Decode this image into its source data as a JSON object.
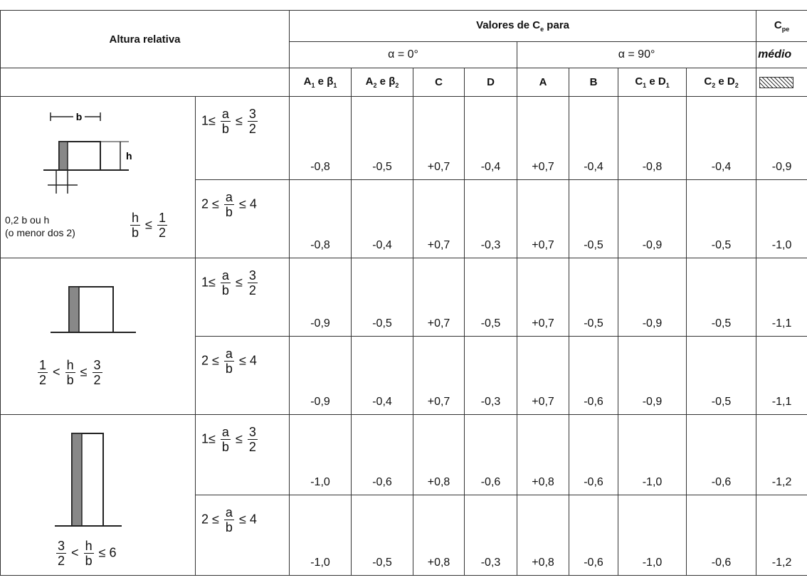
{
  "header": {
    "altura_relativa": "Altura relativa",
    "valores_title": "Valores de C",
    "valores_sub": "e",
    "valores_tail": " para",
    "alpha0": "α = 0°",
    "alpha90": "α = 90°",
    "cpe_main": "C",
    "cpe_sub": "pe",
    "medio": "médio",
    "cols": {
      "c1a": "A",
      "c1a_sub": "1",
      "c1b": " e β",
      "c1b_sub": "1",
      "c2a": "A",
      "c2a_sub": "2",
      "c2b": " e β",
      "c2b_sub": "2",
      "c3": "C",
      "c4": "D",
      "c5": "A",
      "c6": "B",
      "c7a": "C",
      "c7a_sub": "1",
      "c7b": " e D",
      "c7b_sub": "1",
      "c8a": "C",
      "c8a_sub": "2",
      "c8b": " e D",
      "c8b_sub": "2"
    }
  },
  "conditions": {
    "ratio_small_left": "1≤",
    "ratio_small_mid": "≤",
    "ratio_big_left": "2 ≤",
    "ratio_big_right": "≤ 4",
    "a": "a",
    "b": "b",
    "three": "3",
    "two": "2"
  },
  "groups": [
    {
      "fig_b_label": "b",
      "fig_h_label": "h",
      "note_line1": "0,2 b ou h",
      "note_line2": "(o menor dos 2)",
      "rel_num": "h",
      "rel_den": "b",
      "rel_op": "≤",
      "rel_num2": "1",
      "rel_den2": "2"
    },
    {
      "rel_num1": "1",
      "rel_den1": "2",
      "rel_op1": "<",
      "rel_num": "h",
      "rel_den": "b",
      "rel_op2": "≤",
      "rel_num2": "3",
      "rel_den2": "2"
    },
    {
      "rel_num1": "3",
      "rel_den1": "2",
      "rel_op1": "<",
      "rel_num": "h",
      "rel_den": "b",
      "rel_op2": "≤ 6"
    }
  ],
  "rows": [
    [
      "-0,8",
      "-0,5",
      "+0,7",
      "-0,4",
      "+0,7",
      "-0,4",
      "-0,8",
      "-0,4",
      "-0,9"
    ],
    [
      "-0,8",
      "-0,4",
      "+0,7",
      "-0,3",
      "+0,7",
      "-0,5",
      "-0,9",
      "-0,5",
      "-1,0"
    ],
    [
      "-0,9",
      "-0,5",
      "+0,7",
      "-0,5",
      "+0,7",
      "-0,5",
      "-0,9",
      "-0,5",
      "-1,1"
    ],
    [
      "-0,9",
      "-0,4",
      "+0,7",
      "-0,3",
      "+0,7",
      "-0,6",
      "-0,9",
      "-0,5",
      "-1,1"
    ],
    [
      "-1,0",
      "-0,6",
      "+0,8",
      "-0,6",
      "+0,8",
      "-0,6",
      "-1,0",
      "-0,6",
      "-1,2"
    ],
    [
      "-1,0",
      "-0,5",
      "+0,8",
      "-0,3",
      "+0,8",
      "-0,6",
      "-1,0",
      "-0,6",
      "-1,2"
    ]
  ]
}
